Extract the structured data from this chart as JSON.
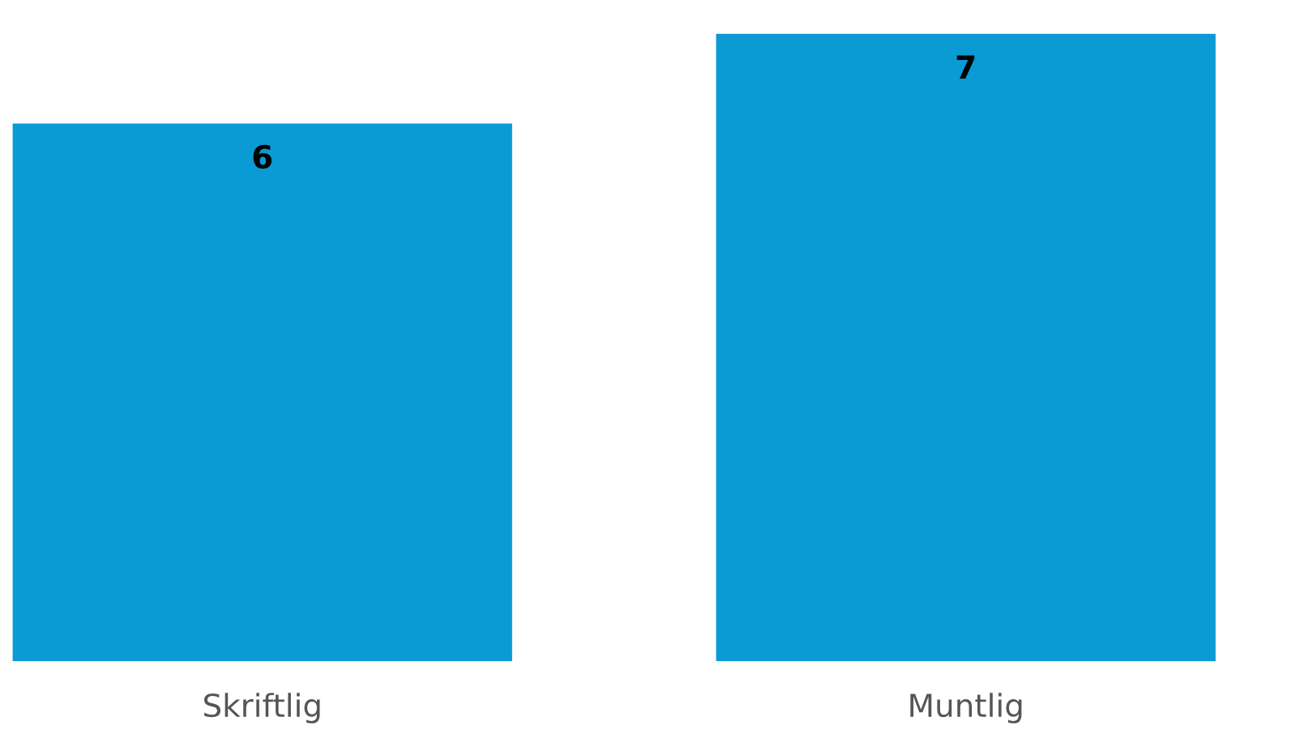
{
  "chart_data": {
    "type": "bar",
    "categories": [
      "Skriftlig",
      "Muntlig"
    ],
    "values": [
      6,
      7
    ],
    "color": "#0a9ad4",
    "tick_labels": "x",
    "grid": false,
    "legend": false,
    "data_labels": true
  }
}
